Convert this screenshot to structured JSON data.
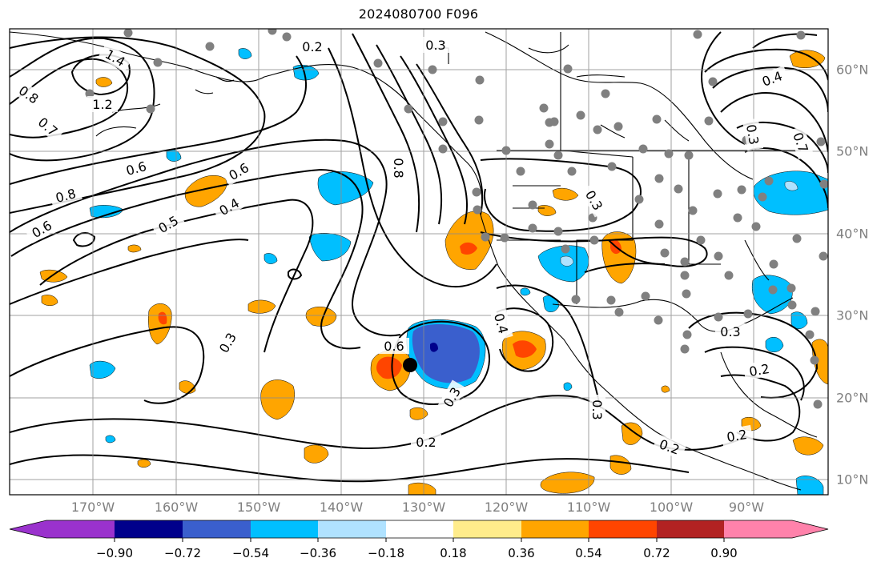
{
  "title": "2024080700 F096",
  "longitude_labels": [
    "170°W",
    "160°W",
    "150°W",
    "140°W",
    "130°W",
    "120°W",
    "110°W",
    "100°W",
    "90°W"
  ],
  "latitude_labels": [
    "60°N",
    "50°N",
    "40°N",
    "30°N",
    "20°N",
    "10°N"
  ],
  "colorbar": {
    "tick_labels": [
      "−0.90",
      "−0.72",
      "−0.54",
      "−0.36",
      "−0.18",
      "0.18",
      "0.36",
      "0.54",
      "0.72",
      "0.90"
    ],
    "colors": [
      "#9a32cd",
      "#00008b",
      "#3a5fcd",
      "#00bfff",
      "#b0e2ff",
      "#ffffff",
      "#ffec8b",
      "#ffa500",
      "#ff4500",
      "#b22222",
      "#ff82ab"
    ]
  },
  "contour_labels": [
    "0.2",
    "0.3",
    "1.2",
    "1.4",
    "0.8",
    "0.7",
    "0.6",
    "0.8",
    "0.6",
    "0.5",
    "0.4",
    "0.8",
    "0.3",
    "0.3",
    "0.6",
    "0.4",
    "0.3",
    "0.3",
    "0.2",
    "0.2",
    "0.4",
    "0.6",
    "0.3",
    "0.7",
    "0.3",
    "0.2",
    "0.2"
  ],
  "colors": {
    "axis_label": "#7f7f7f",
    "grid": "#8c8c8c",
    "station_marker": "#808080",
    "storm_marker": "#000000"
  }
}
